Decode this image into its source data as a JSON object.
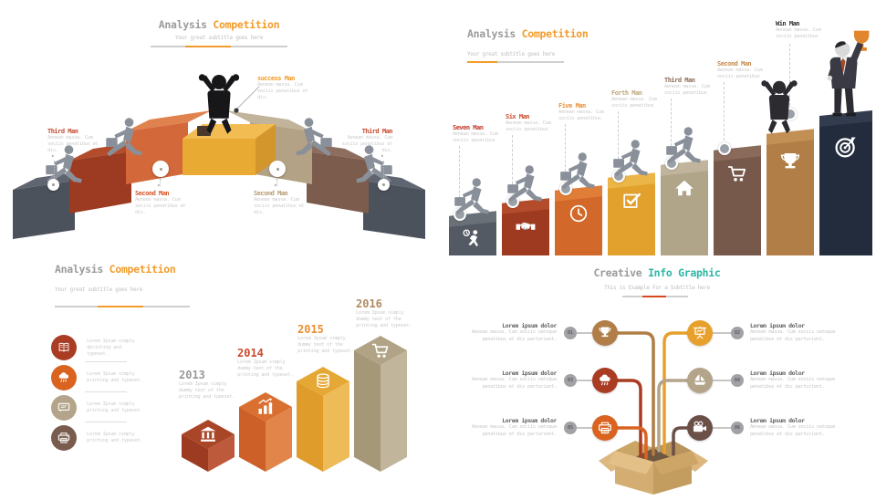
{
  "page": {
    "accent_orange": "#f39c2c",
    "accent_teal": "#2eb5a5",
    "accent_red": "#d8491f"
  },
  "panel1": {
    "title": {
      "gray": "Analysis",
      "accent": "Competition"
    },
    "subtitle": "Your great subtitle  goes here",
    "blocks": [
      {
        "name": "step-gray-left",
        "top": "#5f6672",
        "front": "#4c525c"
      },
      {
        "name": "step-gray-right",
        "top": "#5f6672",
        "front": "#4c525c"
      },
      {
        "name": "step-red",
        "top": "#b24c2b",
        "front": "#9c3a22"
      },
      {
        "name": "step-brown",
        "top": "#8d6e5e",
        "front": "#7b5c4d"
      },
      {
        "name": "step-orange",
        "top": "#e0824e",
        "front": "#d3683a"
      },
      {
        "name": "step-tan",
        "top": "#c2b49a",
        "front": "#b3a285"
      },
      {
        "name": "step-gold",
        "top": "#f2bc52",
        "front": "#e9aa33",
        "side": "#d2962c"
      }
    ],
    "labels": {
      "third_left": {
        "name": "Third Man",
        "color": "#c44a2e",
        "desc": "Aenean massa. Cum sociis penatibus et dis."
      },
      "second_left": {
        "name": "Second Man",
        "color": "#d2572c",
        "desc": "Aenean massa. Cum sociis penatibus et dis."
      },
      "success": {
        "name": "success Man",
        "color": "#f39c2c",
        "desc": "Aenean massa. Cum sociis penatibus et dis."
      },
      "second_right": {
        "name": "Second Man",
        "color": "#b79b72",
        "desc": "Aenean massa. Cum sociis penatibus et dis."
      },
      "third_right": {
        "name": "Third Man",
        "color": "#c44a2e",
        "desc": "Aenean massa. Cum sociis penatibus et dis."
      }
    }
  },
  "panel2": {
    "title": {
      "gray": "Analysis",
      "accent": "Competition"
    },
    "subtitle": "Your great subtitle  goes here",
    "bars": [
      {
        "label": "Seven Man",
        "label_color": "#c0392b",
        "color": "#545a64",
        "top": "#6a7078",
        "icon": "deadline-runner-icon",
        "desc": "Aenean massa. Cum sociis penatibus"
      },
      {
        "label": "Six Man",
        "label_color": "#cc4e2b",
        "color": "#9e3a20",
        "top": "#b24c2b",
        "icon": "handshake-icon",
        "desc": "Aenean massa. Cum sociis penatibus"
      },
      {
        "label": "Five Man",
        "label_color": "#e8913a",
        "color": "#d2692a",
        "top": "#e07e38",
        "icon": "clock-icon",
        "desc": "Aenean massa. Cum sociis penatibus"
      },
      {
        "label": "Forth Man",
        "label_color": "#bfa87b",
        "color": "#e2a12d",
        "top": "#ecb548",
        "icon": "check-square-icon",
        "desc": "Aenean massa. Cum sociis penatibus"
      },
      {
        "label": "Third Man",
        "label_color": "#8d6a55",
        "color": "#b0a489",
        "top": "#c0b59c",
        "icon": "home-icon",
        "desc": "Aenean massa. Cum sociis penatibus"
      },
      {
        "label": "Second Man",
        "label_color": "#c78d4f",
        "color": "#77594b",
        "top": "#8a6a5a",
        "icon": "cart-icon",
        "desc": "Aenean massa. Cum sociis penatibus"
      },
      {
        "label": "",
        "label_color": "#2f2f35",
        "color": "#b07e46",
        "top": "#c29055",
        "icon": "trophy-icon",
        "desc": ""
      },
      {
        "label": "Win Man",
        "label_color": "#2f2f35",
        "color": "#232c3c",
        "top": "#323c4e",
        "icon": "target-icon",
        "desc": "Aenean massa. Cum sociis penatibus"
      }
    ]
  },
  "panel3": {
    "title": {
      "gray": "Analysis",
      "accent": "Competition"
    },
    "subtitle": "Your great subtitle  goes here",
    "list": [
      {
        "icon": "open-book-icon",
        "color": "#a93c22",
        "text": "Lorem Ipsum simply dprinting and typeset."
      },
      {
        "icon": "cloud-rain-icon",
        "color": "#d9631f",
        "text": "Lorem Ipsum simply printing and typeset."
      },
      {
        "icon": "chat-bubble-icon",
        "color": "#b3a48a",
        "text": "Lorem Ipsum simply printing and typeset."
      },
      {
        "icon": "printer-icon",
        "color": "#7a5c4e",
        "text": "Lorem Ipsum simply printing and typeset."
      }
    ],
    "years": [
      {
        "year": "2013",
        "year_color": "#9a9a9a",
        "icon": "bank-icon",
        "top_face": "#aa4628",
        "face_left": "#9c3a22",
        "face_right": "#bd5a3c",
        "desc": "Lorem Ipsum simply dummy text of the printing and typeset."
      },
      {
        "year": "2014",
        "year_color": "#cd4a2c",
        "icon": "bar-chart-icon",
        "top_face": "#d96f30",
        "face_left": "#cd5f28",
        "face_right": "#e2854a",
        "desc": "Lorem Ipsum simply dummy text of the printing and typeset."
      },
      {
        "year": "2015",
        "year_color": "#e89130",
        "icon": "coins-icon",
        "top_face": "#e6a834",
        "face_left": "#df9c2b",
        "face_right": "#edbb58",
        "desc": "Lorem Ipsum simply dummy text of the printing and typeset."
      },
      {
        "year": "2016",
        "year_color": "#b08a5f",
        "icon": "cart-icon",
        "top_face": "#b0a386",
        "face_left": "#a59878",
        "face_right": "#c1b69c",
        "desc": "Lorem Ipsum simply dummy text of the printing and typeset."
      }
    ]
  },
  "panel4": {
    "title": {
      "gray": "Creative",
      "accent": "Info Graphic"
    },
    "subtitle": "This is Example For a Subtitle here",
    "nodes": [
      {
        "num": "01",
        "icon": "trophy-icon",
        "color": "#b07e46",
        "title": "Lorem ipsum dolor",
        "desc": "Aenean massa. Cum sociis natoque penatibus et dis parturient."
      },
      {
        "num": "02",
        "icon": "presentation-icon",
        "color": "#e8a02c",
        "title": "Lorem ipsum dolor",
        "desc": "Aenean massa. Cum sociis natoque penatibus et dis parturient."
      },
      {
        "num": "03",
        "icon": "cloud-rain-icon",
        "color": "#a93c22",
        "title": "Lorem ipsum dolor",
        "desc": "Aenean massa. Cum sociis natoque penatibus et dis parturient."
      },
      {
        "num": "04",
        "icon": "sailboat-icon",
        "color": "#b3a48a",
        "title": "Lorem ipsum dolor",
        "desc": "Aenean massa. Cum sociis natoque penatibus et dis parturient."
      },
      {
        "num": "05",
        "icon": "printer-icon",
        "color": "#d9631f",
        "title": "Lorem ipsum dolor",
        "desc": "Aenean massa. Cum sociis natoque penatibus et dis parturient."
      },
      {
        "num": "06",
        "icon": "video-camera-icon",
        "color": "#6b5048",
        "title": "Lorem ipsum dolor",
        "desc": "Aenean massa. Cum sociis natoque penatibus et dis parturient."
      }
    ],
    "box": {
      "back_left": "#caa565",
      "back_right": "#b8935a",
      "inner": "#6e5640",
      "wing": "#dcb77f",
      "front_left": "#d4ad72",
      "front_right": "#c39c60",
      "flap_left": "#e2c088",
      "flap_right": "#cda667"
    }
  }
}
